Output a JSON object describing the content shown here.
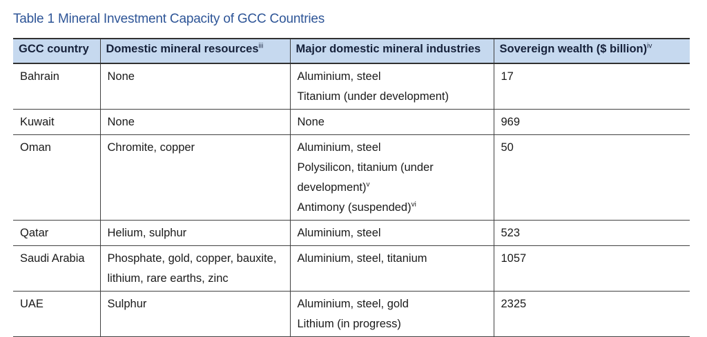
{
  "caption": "Table 1 Mineral Investment Capacity of GCC Countries",
  "headers": {
    "country": "GCC country",
    "resources": "Domestic mineral resources",
    "resources_sup": "iii",
    "industries": "Major domestic mineral industries",
    "wealth": "Sovereign wealth ($ billion)",
    "wealth_sup": "iv"
  },
  "rows": [
    {
      "country": "Bahrain",
      "resources": "None",
      "industries": [
        "Aluminium, steel",
        "Titanium (under development)"
      ],
      "wealth": "17"
    },
    {
      "country": "Kuwait",
      "resources": "None",
      "industries": [
        "None"
      ],
      "wealth": "969"
    },
    {
      "country": "Oman",
      "resources": "Chromite, copper",
      "industries_oman": {
        "line1": "Aluminium, steel",
        "line2_words": [
          "Polysilicon,",
          "titanium",
          "(under"
        ],
        "line3": "development)",
        "line3_sup": "v",
        "line4": "Antimony (suspended)",
        "line4_sup": "vi"
      },
      "wealth": "50"
    },
    {
      "country": "Qatar",
      "resources": "Helium, sulphur",
      "industries": [
        "Aluminium, steel"
      ],
      "wealth": "523"
    },
    {
      "country": "Saudi Arabia",
      "resources_lines": [
        "Phosphate, gold, copper, bauxite,",
        "lithium, rare earths, zinc"
      ],
      "industries": [
        "Aluminium, steel, titanium"
      ],
      "wealth": "1057"
    },
    {
      "country": "UAE",
      "resources": "Sulphur",
      "industries": [
        "Aluminium, steel, gold",
        "Lithium (in progress)"
      ],
      "wealth": "2325"
    }
  ]
}
